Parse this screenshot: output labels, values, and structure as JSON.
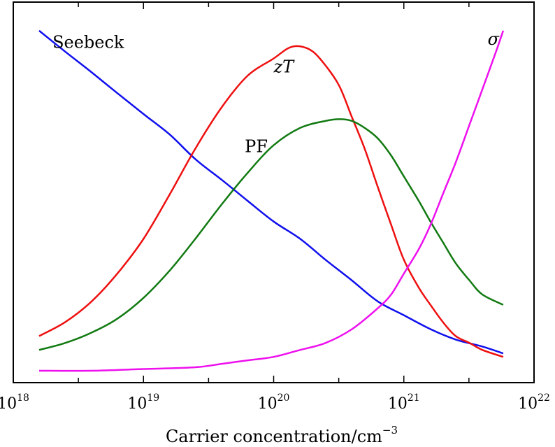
{
  "chart_data": {
    "type": "line",
    "title": "",
    "xlabel": {
      "text": "Carrier concentration/cm",
      "superscript": "−3"
    },
    "ylabel": "",
    "x_scale": "log",
    "xlim": [
      1e+18,
      1e+22
    ],
    "ylim": [
      0,
      1
    ],
    "grid": false,
    "legend": "none",
    "x_ticks": [
      {
        "base": "10",
        "exp": "18",
        "value": 1e+18
      },
      {
        "base": "10",
        "exp": "19",
        "value": 1e+19
      },
      {
        "base": "10",
        "exp": "20",
        "value": 1e+20
      },
      {
        "base": "10",
        "exp": "21",
        "value": 1e+21
      },
      {
        "base": "10",
        "exp": "22",
        "value": 1e+22
      }
    ],
    "series": [
      {
        "name": "Seebeck",
        "color": "#1010ee",
        "label": "Seebeck",
        "label_style": "normal",
        "label_at": [
          2e+18,
          0.93
        ],
        "x": [
          1.58e+18,
          2.5e+18,
          4e+18,
          6.3e+18,
          1e+19,
          1.6e+19,
          2.5e+19,
          4e+19,
          6.3e+19,
          1e+20,
          1.6e+20,
          2.5e+20,
          4e+20,
          6.3e+20,
          1e+21,
          1.6e+21,
          2.5e+21,
          4e+21,
          5.8e+21
        ],
        "y": [
          0.98,
          0.92,
          0.86,
          0.8,
          0.74,
          0.68,
          0.61,
          0.55,
          0.49,
          0.43,
          0.38,
          0.32,
          0.26,
          0.2,
          0.16,
          0.12,
          0.09,
          0.07,
          0.05
        ]
      },
      {
        "name": "zT",
        "color": "#ee1010",
        "label": "zT",
        "label_style": "italic",
        "label_at": [
          1e+20,
          0.86
        ],
        "x": [
          1.58e+18,
          2.5e+18,
          4e+18,
          6.3e+18,
          1e+19,
          1.6e+19,
          2.5e+19,
          4e+19,
          6.3e+19,
          1e+20,
          1.3e+20,
          1.6e+20,
          2e+20,
          2.5e+20,
          3.2e+20,
          4e+20,
          5e+20,
          6.3e+20,
          8e+20,
          1e+21,
          1.3e+21,
          1.6e+21,
          2e+21,
          2.5e+21,
          3.2e+21,
          4e+21,
          5.8e+21
        ],
        "y": [
          0.1,
          0.14,
          0.2,
          0.28,
          0.38,
          0.51,
          0.64,
          0.76,
          0.85,
          0.9,
          0.93,
          0.935,
          0.92,
          0.88,
          0.82,
          0.73,
          0.64,
          0.53,
          0.42,
          0.32,
          0.24,
          0.19,
          0.14,
          0.1,
          0.08,
          0.06,
          0.04
        ]
      },
      {
        "name": "PF",
        "color": "#127a12",
        "label": "PF",
        "label_style": "normal",
        "label_at": [
          6e+19,
          0.63
        ],
        "x": [
          1.58e+18,
          2.5e+18,
          4e+18,
          6.3e+18,
          1e+19,
          1.6e+19,
          2.5e+19,
          4e+19,
          6.3e+19,
          1e+20,
          1.6e+20,
          2.5e+20,
          3.2e+20,
          4e+20,
          5e+20,
          6.3e+20,
          8e+20,
          1e+21,
          1.3e+21,
          1.6e+21,
          2e+21,
          2.5e+21,
          3.2e+21,
          4e+21,
          5.8e+21
        ],
        "y": [
          0.06,
          0.08,
          0.11,
          0.15,
          0.21,
          0.29,
          0.38,
          0.48,
          0.57,
          0.65,
          0.7,
          0.72,
          0.725,
          0.72,
          0.7,
          0.67,
          0.62,
          0.56,
          0.49,
          0.43,
          0.37,
          0.31,
          0.26,
          0.22,
          0.19
        ]
      },
      {
        "name": "σ",
        "color": "#ee10ee",
        "label": "σ",
        "label_style": "italic",
        "label_at": [
          4.4e+21,
          0.94
        ],
        "x": [
          1.58e+18,
          4e+18,
          1e+19,
          2.5e+19,
          4e+19,
          6.3e+19,
          1e+20,
          1.6e+20,
          2.5e+20,
          4e+20,
          6.3e+20,
          8e+20,
          1e+21,
          1.3e+21,
          1.6e+21,
          2e+21,
          2.5e+21,
          3.2e+21,
          4e+21,
          5e+21,
          5.8e+21
        ],
        "y": [
          0.0,
          0.0,
          0.005,
          0.01,
          0.02,
          0.03,
          0.04,
          0.06,
          0.08,
          0.12,
          0.18,
          0.22,
          0.28,
          0.35,
          0.42,
          0.51,
          0.6,
          0.71,
          0.81,
          0.91,
          0.98
        ]
      }
    ]
  }
}
